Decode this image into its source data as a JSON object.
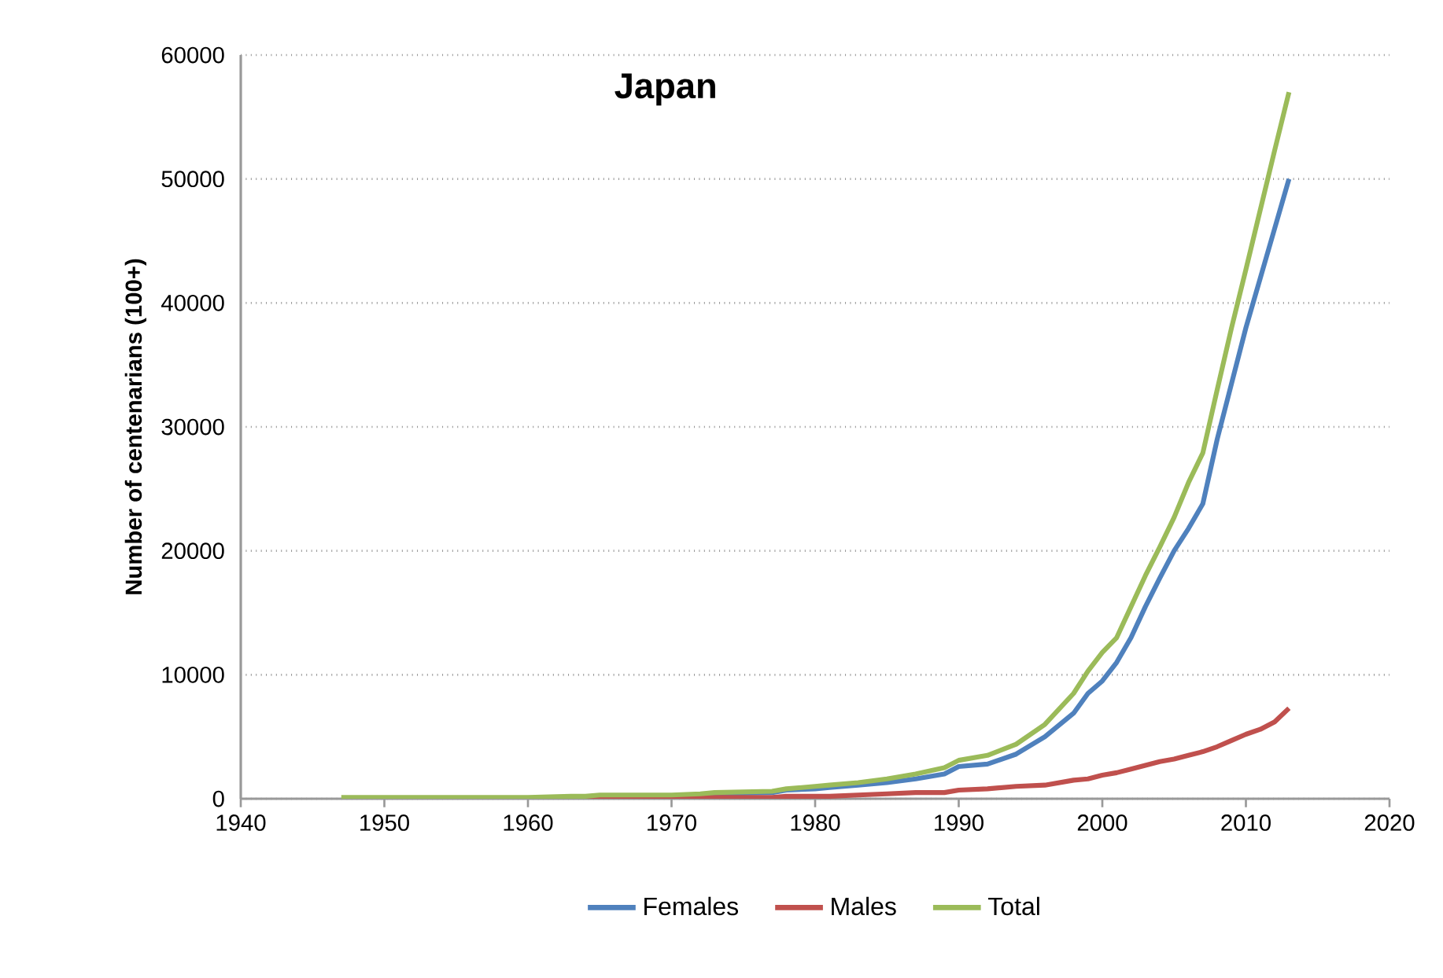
{
  "chart_data": {
    "type": "line",
    "title": "Japan",
    "ylabel": "Number of centenarians (100+)",
    "x": [
      1947,
      1950,
      1955,
      1960,
      1963,
      1964,
      1965,
      1970,
      1972,
      1973,
      1977,
      1978,
      1980,
      1981,
      1983,
      1985,
      1987,
      1989,
      1990,
      1992,
      1994,
      1996,
      1998,
      1999,
      2000,
      2001,
      2002,
      2003,
      2004,
      2005,
      2006,
      2007,
      2008,
      2009,
      2010,
      2011,
      2012,
      2013
    ],
    "series": [
      {
        "name": "Females",
        "color": "#4f81bd",
        "values": [
          null,
          null,
          null,
          null,
          null,
          null,
          null,
          null,
          300,
          400,
          500,
          700,
          800,
          900,
          1100,
          1300,
          1600,
          2000,
          2600,
          2800,
          3600,
          5000,
          6900,
          8500,
          9500,
          11000,
          13000,
          15500,
          17800,
          20000,
          21800,
          23800,
          29000,
          33500,
          38000,
          42000,
          46000,
          50000
        ]
      },
      {
        "name": "Males",
        "color": "#c0504d",
        "values": [
          null,
          null,
          null,
          null,
          0,
          0,
          100,
          100,
          100,
          100,
          100,
          200,
          200,
          200,
          300,
          400,
          500,
          500,
          700,
          800,
          1000,
          1100,
          1500,
          1600,
          1900,
          2100,
          2400,
          2700,
          3000,
          3200,
          3500,
          3800,
          4200,
          4700,
          5200,
          5600,
          6200,
          7300
        ]
      },
      {
        "name": "Total",
        "color": "#9bbb59",
        "values": [
          100,
          100,
          100,
          100,
          200,
          200,
          300,
          300,
          400,
          500,
          600,
          800,
          1000,
          1100,
          1300,
          1600,
          2000,
          2500,
          3100,
          3500,
          4400,
          6000,
          8500,
          10300,
          11800,
          13000,
          15500,
          18000,
          20300,
          22700,
          25500,
          27900,
          33000,
          38000,
          42700,
          47500,
          52300,
          57000
        ]
      }
    ],
    "xlim": [
      1940,
      2020
    ],
    "xticks": [
      1940,
      1950,
      1960,
      1970,
      1980,
      1990,
      2000,
      2010,
      2020
    ],
    "ylim": [
      0,
      60000
    ],
    "yticks": [
      0,
      10000,
      20000,
      30000,
      40000,
      50000,
      60000
    ],
    "grid": "y",
    "legend": "bottom",
    "line_style": "solid"
  }
}
